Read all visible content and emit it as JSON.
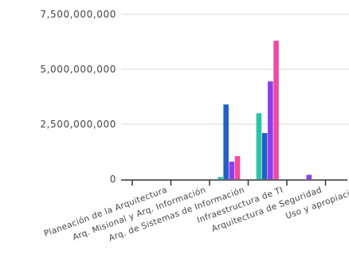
{
  "chart_data": {
    "type": "bar",
    "categories": [
      "Planeación de la Arquitectura",
      "Arq. Misional y Arq. Información",
      "Arq. de Sistemas de Información",
      "Infraestructura de TI",
      "Arquitectura de Seguridad",
      "Uso y apropiación"
    ],
    "series": [
      {
        "color": "#2bc4a4",
        "values": [
          0,
          0,
          100000000,
          3000000000,
          0,
          0
        ]
      },
      {
        "color": "#2160c4",
        "values": [
          0,
          0,
          3400000000,
          2100000000,
          0,
          0
        ]
      },
      {
        "color": "#8a3ff0",
        "values": [
          0,
          0,
          800000000,
          4450000000,
          200000000,
          0
        ]
      },
      {
        "color": "#f24aa0",
        "values": [
          0,
          0,
          1050000000,
          6300000000,
          0,
          0
        ]
      }
    ],
    "y_ticks": [
      "0",
      "2,500,000,000",
      "5,000,000,000",
      "7,500,000,000"
    ],
    "y_tick_values": [
      0,
      2500000000,
      5000000000,
      7500000000
    ],
    "ylim": [
      0,
      7500000000
    ],
    "grid": true,
    "title": "",
    "xlabel": "",
    "ylabel": ""
  }
}
